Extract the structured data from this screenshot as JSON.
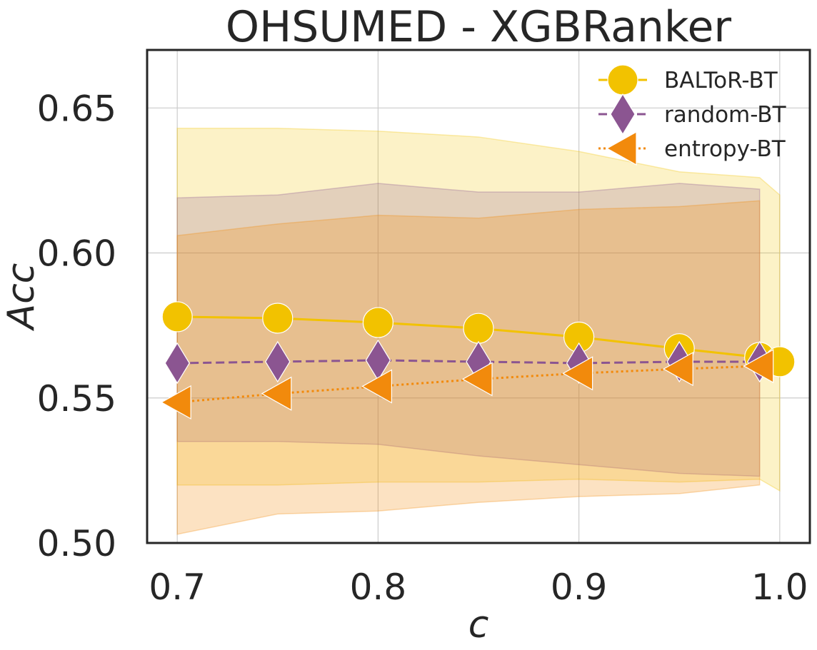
{
  "chart_data": {
    "type": "line",
    "title": "OHSUMED - XGBRanker",
    "xlabel": "c",
    "ylabel": "Acc",
    "xlim": [
      0.685,
      1.015
    ],
    "ylim": [
      0.5,
      0.67
    ],
    "xticks": [
      0.7,
      0.8,
      0.9,
      1.0
    ],
    "xtick_labels": [
      "0.7",
      "0.8",
      "0.9",
      "1.0"
    ],
    "yticks": [
      0.5,
      0.55,
      0.6,
      0.65
    ],
    "ytick_labels": [
      "0.50",
      "0.55",
      "0.60",
      "0.65"
    ],
    "grid": true,
    "legend_position": "top-right",
    "series": [
      {
        "name": "BALToR-BT",
        "color": "#f2c200",
        "linestyle": "solid",
        "marker": "circle",
        "x": [
          0.7,
          0.75,
          0.8,
          0.85,
          0.9,
          0.95,
          0.99,
          1.0
        ],
        "y": [
          0.578,
          0.5775,
          0.576,
          0.574,
          0.571,
          0.567,
          0.564,
          0.5625
        ],
        "band_upper": [
          0.643,
          0.643,
          0.642,
          0.64,
          0.635,
          0.628,
          0.626,
          0.62
        ],
        "band_lower": [
          0.52,
          0.52,
          0.521,
          0.521,
          0.522,
          0.521,
          0.522,
          0.518
        ]
      },
      {
        "name": "random-BT",
        "color": "#8b5591",
        "linestyle": "dashed",
        "marker": "diamond",
        "x": [
          0.7,
          0.75,
          0.8,
          0.85,
          0.9,
          0.95,
          0.99
        ],
        "y": [
          0.562,
          0.5625,
          0.563,
          0.5625,
          0.562,
          0.5625,
          0.5625
        ],
        "band_upper": [
          0.619,
          0.62,
          0.624,
          0.621,
          0.621,
          0.624,
          0.622
        ],
        "band_lower": [
          0.535,
          0.535,
          0.534,
          0.53,
          0.527,
          0.524,
          0.523
        ]
      },
      {
        "name": "entropy-BT",
        "color": "#f28a0c",
        "linestyle": "dotted",
        "marker": "triangle-left",
        "x": [
          0.7,
          0.75,
          0.8,
          0.85,
          0.9,
          0.95,
          0.99
        ],
        "y": [
          0.5485,
          0.5515,
          0.554,
          0.5565,
          0.5585,
          0.56,
          0.561
        ],
        "band_upper": [
          0.606,
          0.61,
          0.613,
          0.612,
          0.615,
          0.616,
          0.618
        ],
        "band_lower": [
          0.503,
          0.51,
          0.511,
          0.514,
          0.516,
          0.517,
          0.52
        ]
      }
    ]
  }
}
